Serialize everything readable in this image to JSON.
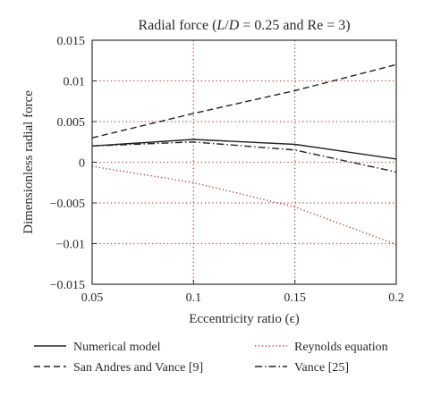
{
  "chart_data": {
    "type": "line",
    "title": {
      "parts": [
        {
          "text": "Radial force (",
          "italic": false
        },
        {
          "text": "L",
          "italic": true
        },
        {
          "text": "/",
          "italic": false
        },
        {
          "text": "D",
          "italic": true
        },
        {
          "text": " = 0.25 and Re = 3)",
          "italic": false
        }
      ]
    },
    "xlabel": "Eccentricity ratio (ϵ)",
    "ylabel": "Dimensionless radial force",
    "xlim": [
      0.05,
      0.2
    ],
    "ylim": [
      -0.015,
      0.015
    ],
    "xticks": [
      0.05,
      0.1,
      0.15,
      0.2
    ],
    "xtick_labels": [
      "0.05",
      "0.1",
      "0.15",
      "0.2"
    ],
    "yticks": [
      -0.015,
      -0.01,
      -0.005,
      0,
      0.005,
      0.01,
      0.015
    ],
    "ytick_labels": [
      "−0.015",
      "−0.01",
      "−0.005",
      "0",
      "0.005",
      "0.01",
      "0.015"
    ],
    "grid": {
      "on": true,
      "style": "dotted"
    },
    "legend_position": "bottom, outside plot, two columns",
    "series": [
      {
        "name": "Numerical model",
        "line_style": "solid",
        "color": "#222222",
        "x": [
          0.05,
          0.1,
          0.15,
          0.2
        ],
        "y": [
          0.002,
          0.0028,
          0.0022,
          0.0004
        ]
      },
      {
        "name": "San Andres and Vance [9]",
        "line_style": "dashed",
        "color": "#222222",
        "x": [
          0.05,
          0.1,
          0.15,
          0.2
        ],
        "y": [
          0.003,
          0.006,
          0.0088,
          0.012
        ]
      },
      {
        "name": "Reynolds equation",
        "line_style": "dotted",
        "color": "#b5483f",
        "x": [
          0.05,
          0.1,
          0.15,
          0.2
        ],
        "y": [
          -0.0005,
          -0.0025,
          -0.0055,
          -0.0101
        ]
      },
      {
        "name": "Vance [25]",
        "line_style": "dashdot",
        "color": "#222222",
        "x": [
          0.05,
          0.1,
          0.15,
          0.2
        ],
        "y": [
          0.002,
          0.0025,
          0.0015,
          -0.0012
        ]
      }
    ]
  }
}
